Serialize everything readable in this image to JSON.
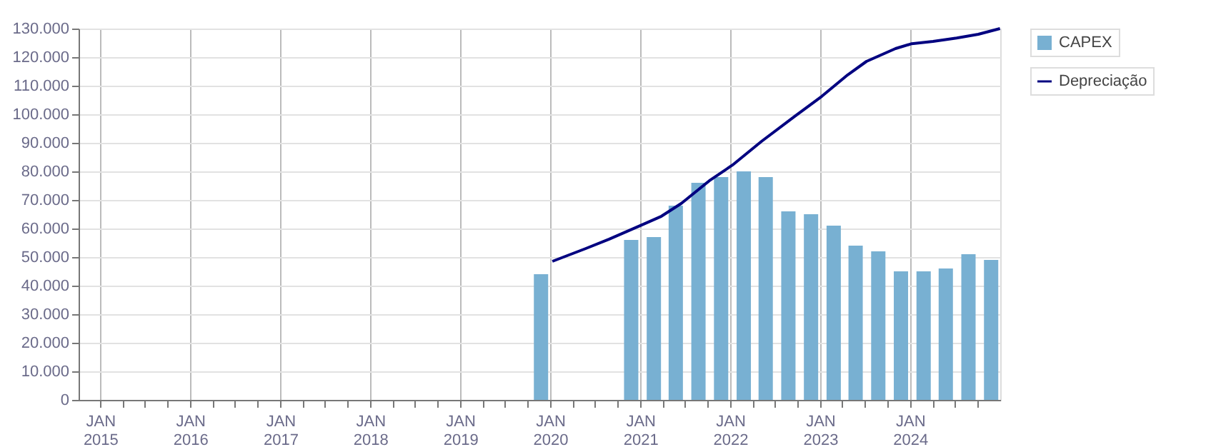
{
  "chart_data": {
    "type": "bar",
    "legend": "top right",
    "grid": true,
    "xlim": [
      "2014-10-05",
      "2025-01-01"
    ],
    "xticks": [
      {
        "value": "2015-01-01",
        "label": "JAN\n2015"
      },
      {
        "value": "2015-04-01",
        "label": null
      },
      {
        "value": "2015-07-01",
        "label": null
      },
      {
        "value": "2015-10-01",
        "label": null
      },
      {
        "value": "2016-01-01",
        "label": "JAN\n2016"
      },
      {
        "value": "2016-04-01",
        "label": null
      },
      {
        "value": "2016-07-01",
        "label": null
      },
      {
        "value": "2016-10-01",
        "label": null
      },
      {
        "value": "2017-01-01",
        "label": "JAN\n2017"
      },
      {
        "value": "2017-04-01",
        "label": null
      },
      {
        "value": "2017-07-01",
        "label": null
      },
      {
        "value": "2017-10-01",
        "label": null
      },
      {
        "value": "2018-01-01",
        "label": "JAN\n2018"
      },
      {
        "value": "2018-04-01",
        "label": null
      },
      {
        "value": "2018-07-01",
        "label": null
      },
      {
        "value": "2018-10-01",
        "label": null
      },
      {
        "value": "2019-01-01",
        "label": "JAN\n2019"
      },
      {
        "value": "2019-04-01",
        "label": null
      },
      {
        "value": "2019-07-01",
        "label": null
      },
      {
        "value": "2019-10-01",
        "label": null
      },
      {
        "value": "2020-01-01",
        "label": "JAN\n2020"
      },
      {
        "value": "2020-04-01",
        "label": null
      },
      {
        "value": "2020-07-01",
        "label": null
      },
      {
        "value": "2020-10-01",
        "label": null
      },
      {
        "value": "2021-01-01",
        "label": "JAN\n2021"
      },
      {
        "value": "2021-04-01",
        "label": null
      },
      {
        "value": "2021-07-01",
        "label": null
      },
      {
        "value": "2021-10-01",
        "label": null
      },
      {
        "value": "2022-01-01",
        "label": "JAN\n2022"
      },
      {
        "value": "2022-04-01",
        "label": null
      },
      {
        "value": "2022-07-01",
        "label": null
      },
      {
        "value": "2022-10-01",
        "label": null
      },
      {
        "value": "2023-01-01",
        "label": "JAN\n2023"
      },
      {
        "value": "2023-04-01",
        "label": null
      },
      {
        "value": "2023-07-01",
        "label": null
      },
      {
        "value": "2023-10-01",
        "label": null
      },
      {
        "value": "2024-01-01",
        "label": "JAN\n2024"
      },
      {
        "value": "2024-04-01",
        "label": null
      },
      {
        "value": "2024-07-01",
        "label": null
      },
      {
        "value": "2024-10-01",
        "label": null
      }
    ],
    "ylim": [
      0,
      130000
    ],
    "yticks": [
      {
        "value": 0,
        "label": "0"
      },
      {
        "value": 10000,
        "label": "10.000"
      },
      {
        "value": 20000,
        "label": "20.000"
      },
      {
        "value": 30000,
        "label": "30.000"
      },
      {
        "value": 40000,
        "label": "40.000"
      },
      {
        "value": 50000,
        "label": "50.000"
      },
      {
        "value": 60000,
        "label": "60.000"
      },
      {
        "value": 70000,
        "label": "70.000"
      },
      {
        "value": 80000,
        "label": "80.000"
      },
      {
        "value": 90000,
        "label": "90.000"
      },
      {
        "value": 100000,
        "label": "100.000"
      },
      {
        "value": 110000,
        "label": "110.000"
      },
      {
        "value": 120000,
        "label": "120.000"
      },
      {
        "value": 130000,
        "label": "130.000"
      }
    ],
    "series": [
      {
        "name": "CAPEX",
        "color": "#78b0d2",
        "x": [
          "2019-11-25",
          "2020-11-25",
          "2021-02-25",
          "2021-05-25",
          "2021-08-25",
          "2021-11-25",
          "2022-02-25",
          "2022-05-25",
          "2022-08-25",
          "2022-11-25",
          "2023-02-25",
          "2023-05-25",
          "2023-08-25",
          "2023-11-25",
          "2024-02-25",
          "2024-05-25",
          "2024-08-25",
          "2024-11-25"
        ],
        "values": [
          44000,
          56000,
          57000,
          68000,
          76000,
          78000,
          80000,
          78000,
          66000,
          65000,
          61000,
          54000,
          52000,
          45000,
          45000,
          46000,
          51000,
          49000
        ]
      },
      {
        "name": "Depreciação",
        "type": "line",
        "color": "#000080",
        "x": [
          "2020-01-10",
          "2020-05-25",
          "2020-08-28",
          "2021-01-08",
          "2021-03-28",
          "2021-06-17",
          "2021-10-08",
          "2022-01-10",
          "2022-05-08",
          "2022-09-20",
          "2023-01-08",
          "2023-04-23",
          "2023-07-08",
          "2023-11-03",
          "2024-01-08",
          "2024-04-03",
          "2024-07-08",
          "2024-10-04",
          "2024-12-31"
        ],
        "values": [
          48500,
          53000,
          56300,
          61300,
          64300,
          68800,
          76700,
          82200,
          90500,
          99300,
          106300,
          113800,
          118500,
          123000,
          124700,
          125500,
          126700,
          128000,
          130000
        ]
      }
    ]
  }
}
